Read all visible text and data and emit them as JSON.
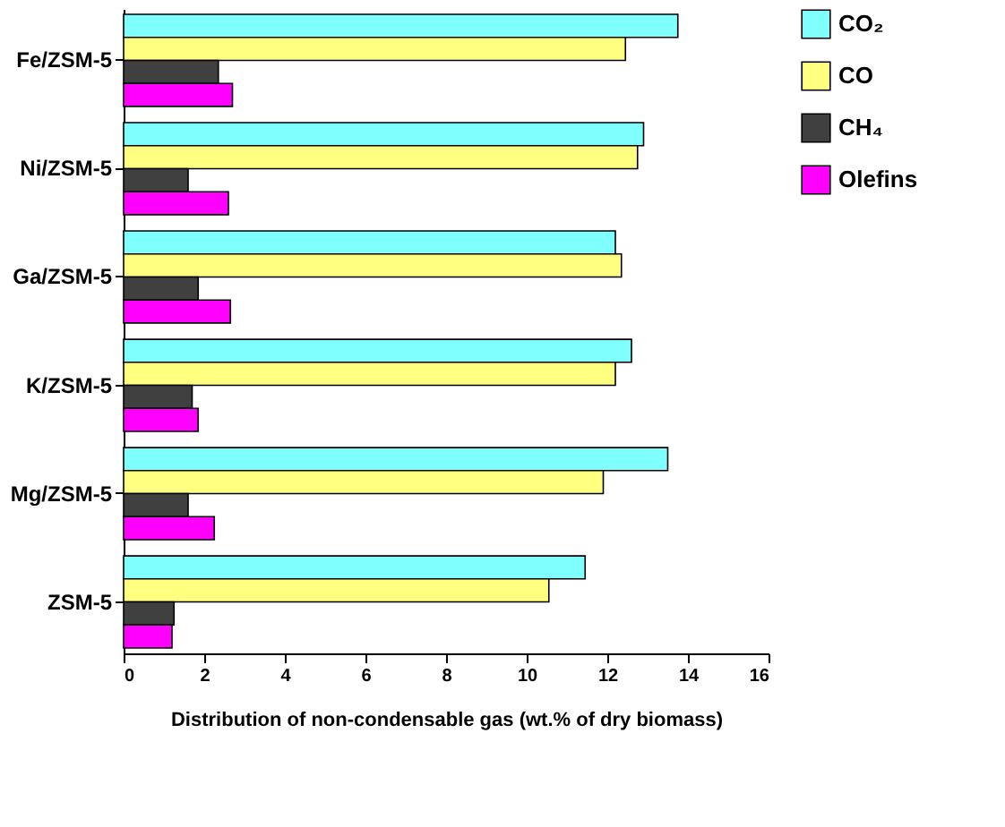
{
  "chart_data": {
    "type": "bar",
    "orientation": "horizontal",
    "xlabel": "Distribution of non-condensable gas (wt.% of dry biomass)",
    "categories": [
      "Fe/ZSM-5",
      "Ni/ZSM-5",
      "Ga/ZSM-5",
      "K/ZSM-5",
      "Mg/ZSM-5",
      "ZSM-5"
    ],
    "series": [
      {
        "name": "CO₂",
        "color": "#80ffff",
        "values": [
          13.75,
          12.9,
          12.2,
          12.6,
          13.5,
          11.45
        ]
      },
      {
        "name": "CO",
        "color": "#ffff80",
        "values": [
          12.45,
          12.75,
          12.35,
          12.2,
          11.9,
          10.55
        ]
      },
      {
        "name": "CH₄",
        "color": "#404040",
        "values": [
          2.35,
          1.6,
          1.85,
          1.7,
          1.6,
          1.25
        ]
      },
      {
        "name": "Olefins",
        "color": "#ff00ff",
        "values": [
          2.7,
          2.6,
          2.65,
          1.85,
          2.25,
          1.2
        ]
      }
    ],
    "xlim": [
      0,
      16
    ],
    "xticks": [
      0,
      2,
      4,
      6,
      8,
      10,
      12,
      14,
      16
    ],
    "legend": "right",
    "grid": false
  }
}
